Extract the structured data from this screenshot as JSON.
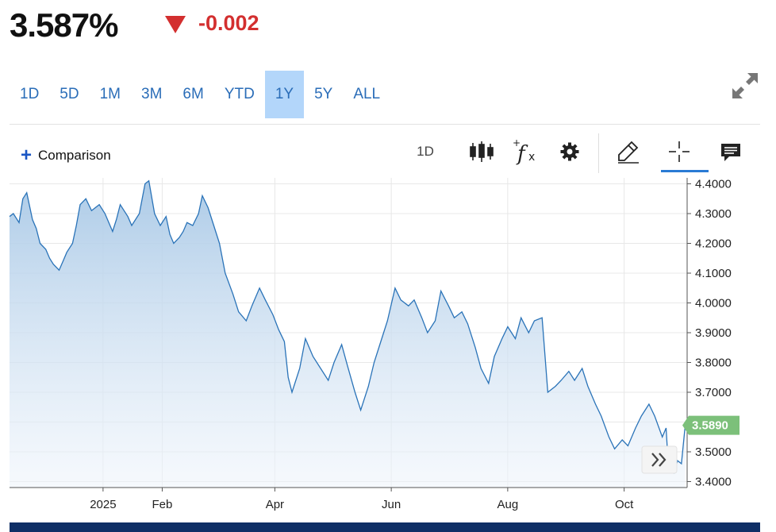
{
  "header": {
    "price": "3.587%",
    "change": "-0.002",
    "change_color": "#d32f2f"
  },
  "ranges": {
    "items": [
      "1D",
      "5D",
      "1M",
      "3M",
      "6M",
      "YTD",
      "1Y",
      "5Y",
      "ALL"
    ],
    "active": "1Y"
  },
  "toolbar": {
    "comparison_label": "Comparison",
    "interval_label": "1D",
    "icons": [
      "candlestick-icon",
      "function-icon",
      "gear-icon",
      "pencil-icon",
      "crosshair-icon",
      "comment-icon"
    ]
  },
  "chart_data": {
    "type": "area",
    "x_range": [
      "2024-11-13",
      "2025-11-03"
    ],
    "ylim": [
      3.38,
      4.42
    ],
    "y_ticks": [
      "4.4000",
      "4.3000",
      "4.2000",
      "4.1000",
      "4.0000",
      "3.9000",
      "3.8000",
      "3.7000",
      "3.6000",
      "3.5000",
      "3.4000"
    ],
    "x_ticks": [
      {
        "date": "2025-01-01",
        "label": "2025"
      },
      {
        "date": "2025-02-01",
        "label": "Feb"
      },
      {
        "date": "2025-04-01",
        "label": "Apr"
      },
      {
        "date": "2025-06-01",
        "label": "Jun"
      },
      {
        "date": "2025-08-01",
        "label": "Aug"
      },
      {
        "date": "2025-10-01",
        "label": "Oct"
      }
    ],
    "current_value_label": "3.5890",
    "current_value": 3.589,
    "line_color": "#2a73b8",
    "area_top_color": "#a8c8e6",
    "label_color": "#7cc07a",
    "series": [
      {
        "points": [
          [
            "2024-11-13",
            4.29
          ],
          [
            "2024-11-15",
            4.3
          ],
          [
            "2024-11-18",
            4.27
          ],
          [
            "2024-11-20",
            4.35
          ],
          [
            "2024-11-22",
            4.37
          ],
          [
            "2024-11-25",
            4.28
          ],
          [
            "2024-11-27",
            4.25
          ],
          [
            "2024-11-29",
            4.2
          ],
          [
            "2024-12-02",
            4.18
          ],
          [
            "2024-12-04",
            4.15
          ],
          [
            "2024-12-06",
            4.13
          ],
          [
            "2024-12-09",
            4.11
          ],
          [
            "2024-12-11",
            4.14
          ],
          [
            "2024-12-13",
            4.17
          ],
          [
            "2024-12-16",
            4.2
          ],
          [
            "2024-12-18",
            4.26
          ],
          [
            "2024-12-20",
            4.33
          ],
          [
            "2024-12-23",
            4.35
          ],
          [
            "2024-12-26",
            4.31
          ],
          [
            "2024-12-30",
            4.33
          ],
          [
            "2025-01-02",
            4.3
          ],
          [
            "2025-01-06",
            4.24
          ],
          [
            "2025-01-08",
            4.28
          ],
          [
            "2025-01-10",
            4.33
          ],
          [
            "2025-01-14",
            4.29
          ],
          [
            "2025-01-16",
            4.26
          ],
          [
            "2025-01-20",
            4.3
          ],
          [
            "2025-01-23",
            4.4
          ],
          [
            "2025-01-25",
            4.41
          ],
          [
            "2025-01-28",
            4.3
          ],
          [
            "2025-01-31",
            4.26
          ],
          [
            "2025-02-03",
            4.29
          ],
          [
            "2025-02-05",
            4.23
          ],
          [
            "2025-02-07",
            4.2
          ],
          [
            "2025-02-10",
            4.22
          ],
          [
            "2025-02-12",
            4.24
          ],
          [
            "2025-02-14",
            4.27
          ],
          [
            "2025-02-17",
            4.26
          ],
          [
            "2025-02-20",
            4.3
          ],
          [
            "2025-02-22",
            4.36
          ],
          [
            "2025-02-25",
            4.32
          ],
          [
            "2025-02-28",
            4.26
          ],
          [
            "2025-03-03",
            4.2
          ],
          [
            "2025-03-06",
            4.1
          ],
          [
            "2025-03-10",
            4.03
          ],
          [
            "2025-03-13",
            3.97
          ],
          [
            "2025-03-17",
            3.94
          ],
          [
            "2025-03-20",
            3.99
          ],
          [
            "2025-03-24",
            4.05
          ],
          [
            "2025-03-27",
            4.01
          ],
          [
            "2025-03-31",
            3.96
          ],
          [
            "2025-04-03",
            3.91
          ],
          [
            "2025-04-06",
            3.87
          ],
          [
            "2025-04-08",
            3.75
          ],
          [
            "2025-04-10",
            3.7
          ],
          [
            "2025-04-14",
            3.78
          ],
          [
            "2025-04-17",
            3.88
          ],
          [
            "2025-04-21",
            3.82
          ],
          [
            "2025-04-25",
            3.78
          ],
          [
            "2025-04-29",
            3.74
          ],
          [
            "2025-05-02",
            3.8
          ],
          [
            "2025-05-06",
            3.86
          ],
          [
            "2025-05-09",
            3.79
          ],
          [
            "2025-05-13",
            3.7
          ],
          [
            "2025-05-16",
            3.64
          ],
          [
            "2025-05-20",
            3.72
          ],
          [
            "2025-05-23",
            3.8
          ],
          [
            "2025-05-27",
            3.88
          ],
          [
            "2025-05-30",
            3.94
          ],
          [
            "2025-06-03",
            4.05
          ],
          [
            "2025-06-06",
            4.01
          ],
          [
            "2025-06-10",
            3.99
          ],
          [
            "2025-06-13",
            4.01
          ],
          [
            "2025-06-17",
            3.95
          ],
          [
            "2025-06-20",
            3.9
          ],
          [
            "2025-06-24",
            3.94
          ],
          [
            "2025-06-27",
            4.04
          ],
          [
            "2025-07-01",
            3.99
          ],
          [
            "2025-07-04",
            3.95
          ],
          [
            "2025-07-08",
            3.97
          ],
          [
            "2025-07-11",
            3.93
          ],
          [
            "2025-07-15",
            3.85
          ],
          [
            "2025-07-18",
            3.78
          ],
          [
            "2025-07-22",
            3.73
          ],
          [
            "2025-07-25",
            3.82
          ],
          [
            "2025-07-29",
            3.88
          ],
          [
            "2025-08-01",
            3.92
          ],
          [
            "2025-08-05",
            3.88
          ],
          [
            "2025-08-08",
            3.95
          ],
          [
            "2025-08-12",
            3.9
          ],
          [
            "2025-08-15",
            3.94
          ],
          [
            "2025-08-19",
            3.95
          ],
          [
            "2025-08-22",
            3.7
          ],
          [
            "2025-08-26",
            3.72
          ],
          [
            "2025-08-29",
            3.74
          ],
          [
            "2025-09-02",
            3.77
          ],
          [
            "2025-09-05",
            3.74
          ],
          [
            "2025-09-09",
            3.78
          ],
          [
            "2025-09-12",
            3.72
          ],
          [
            "2025-09-16",
            3.66
          ],
          [
            "2025-09-19",
            3.62
          ],
          [
            "2025-09-23",
            3.55
          ],
          [
            "2025-09-26",
            3.51
          ],
          [
            "2025-09-30",
            3.54
          ],
          [
            "2025-10-03",
            3.52
          ],
          [
            "2025-10-07",
            3.58
          ],
          [
            "2025-10-10",
            3.62
          ],
          [
            "2025-10-14",
            3.66
          ],
          [
            "2025-10-17",
            3.62
          ],
          [
            "2025-10-21",
            3.55
          ],
          [
            "2025-10-23",
            3.58
          ],
          [
            "2025-10-24",
            3.47
          ],
          [
            "2025-10-27",
            3.43
          ],
          [
            "2025-10-29",
            3.47
          ],
          [
            "2025-10-31",
            3.46
          ],
          [
            "2025-11-02",
            3.59
          ]
        ]
      }
    ]
  }
}
